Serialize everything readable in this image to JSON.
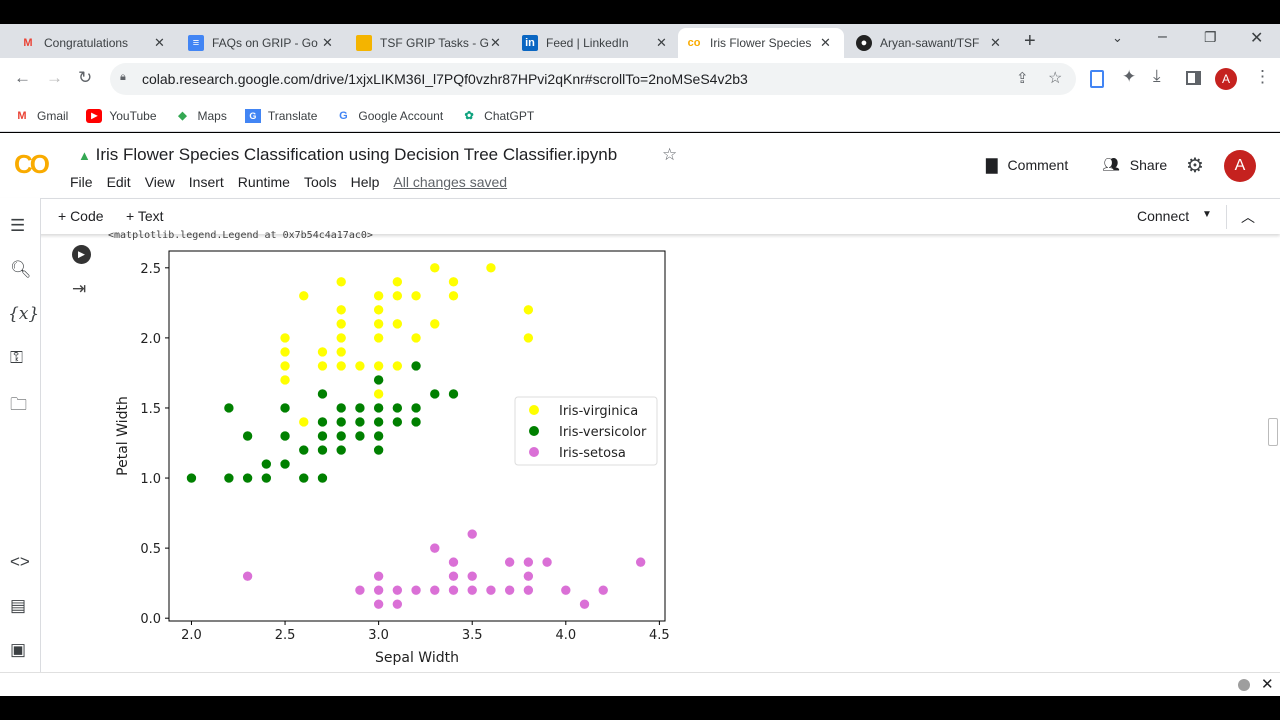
{
  "browser": {
    "tabs": [
      {
        "label": "Congratulations",
        "icon": "gmail-icon",
        "active": false
      },
      {
        "label": "FAQs on GRIP - Go",
        "icon": "google-docs-icon",
        "active": false
      },
      {
        "label": "TSF GRIP Tasks - G",
        "icon": "google-slides-icon",
        "active": false
      },
      {
        "label": "Feed | LinkedIn",
        "icon": "linkedin-icon",
        "active": false
      },
      {
        "label": "Iris Flower Species",
        "icon": "colab-icon",
        "active": true
      },
      {
        "label": "Aryan-sawant/TSF",
        "icon": "github-icon",
        "active": false
      }
    ],
    "url": "colab.research.google.com/drive/1xjxLIKM36I_l7PQf0vzhr87HPvi2qKnr#scrollTo=2noMSeS4v2b3",
    "profile_initial": "A",
    "bookmarks": [
      "Gmail",
      "YouTube",
      "Maps",
      "Translate",
      "Google Account",
      "ChatGPT"
    ]
  },
  "colab": {
    "logo": "CO",
    "title": "Iris Flower Species Classification using Decision Tree Classifier.ipynb",
    "menu": [
      "File",
      "Edit",
      "View",
      "Insert",
      "Runtime",
      "Tools",
      "Help"
    ],
    "save_status": "All changes saved",
    "comment": "Comment",
    "share": "Share",
    "avatar": "A",
    "add_code": "+ Code",
    "add_text": "+ Text",
    "connect": "Connect",
    "output_text": "<matplotlib.legend.Legend at 0x7b54c4a17ac0>"
  },
  "chart_data": {
    "type": "scatter",
    "xlabel": "Sepal Width",
    "ylabel": "Petal Width",
    "xlim": [
      1.88,
      4.53
    ],
    "ylim": [
      -0.02,
      2.62
    ],
    "xticks": [
      "2.0",
      "2.5",
      "3.0",
      "3.5",
      "4.0",
      "4.5"
    ],
    "yticks": [
      "0.0",
      "0.5",
      "1.0",
      "1.5",
      "2.0",
      "2.5"
    ],
    "legend": "center-right",
    "grid": false,
    "series": [
      {
        "name": "Iris-virginica",
        "color": "#ffff00",
        "points": [
          [
            3.3,
            2.5
          ],
          [
            3.6,
            2.5
          ],
          [
            2.8,
            2.4
          ],
          [
            3.1,
            2.4
          ],
          [
            3.4,
            2.4
          ],
          [
            2.6,
            2.3
          ],
          [
            3.0,
            2.3
          ],
          [
            3.1,
            2.3
          ],
          [
            3.2,
            2.3
          ],
          [
            3.4,
            2.3
          ],
          [
            2.8,
            2.2
          ],
          [
            3.0,
            2.2
          ],
          [
            3.8,
            2.2
          ],
          [
            2.8,
            2.1
          ],
          [
            3.0,
            2.1
          ],
          [
            3.1,
            2.1
          ],
          [
            3.3,
            2.1
          ],
          [
            2.5,
            2.0
          ],
          [
            2.8,
            2.0
          ],
          [
            3.0,
            2.0
          ],
          [
            3.2,
            2.0
          ],
          [
            3.8,
            2.0
          ],
          [
            2.5,
            1.9
          ],
          [
            2.7,
            1.9
          ],
          [
            2.8,
            1.9
          ],
          [
            2.5,
            1.8
          ],
          [
            2.7,
            1.8
          ],
          [
            2.8,
            1.8
          ],
          [
            2.9,
            1.8
          ],
          [
            3.0,
            1.8
          ],
          [
            3.1,
            1.8
          ],
          [
            2.5,
            1.7
          ],
          [
            3.0,
            1.6
          ],
          [
            2.6,
            1.4
          ]
        ]
      },
      {
        "name": "Iris-versicolor",
        "color": "#008000",
        "points": [
          [
            3.2,
            1.8
          ],
          [
            3.0,
            1.7
          ],
          [
            2.7,
            1.6
          ],
          [
            3.3,
            1.6
          ],
          [
            3.4,
            1.6
          ],
          [
            2.2,
            1.5
          ],
          [
            2.5,
            1.5
          ],
          [
            2.8,
            1.5
          ],
          [
            2.9,
            1.5
          ],
          [
            3.0,
            1.5
          ],
          [
            3.1,
            1.5
          ],
          [
            3.2,
            1.5
          ],
          [
            2.7,
            1.4
          ],
          [
            2.8,
            1.4
          ],
          [
            2.9,
            1.4
          ],
          [
            3.0,
            1.4
          ],
          [
            3.1,
            1.4
          ],
          [
            3.2,
            1.4
          ],
          [
            2.3,
            1.3
          ],
          [
            2.5,
            1.3
          ],
          [
            2.7,
            1.3
          ],
          [
            2.8,
            1.3
          ],
          [
            2.9,
            1.3
          ],
          [
            3.0,
            1.3
          ],
          [
            2.6,
            1.2
          ],
          [
            2.7,
            1.2
          ],
          [
            2.8,
            1.2
          ],
          [
            3.0,
            1.2
          ],
          [
            2.4,
            1.1
          ],
          [
            2.5,
            1.1
          ],
          [
            2.0,
            1.0
          ],
          [
            2.2,
            1.0
          ],
          [
            2.3,
            1.0
          ],
          [
            2.4,
            1.0
          ],
          [
            2.6,
            1.0
          ],
          [
            2.7,
            1.0
          ]
        ]
      },
      {
        "name": "Iris-setosa",
        "color": "#da70d6",
        "points": [
          [
            3.5,
            0.6
          ],
          [
            3.3,
            0.5
          ],
          [
            3.4,
            0.4
          ],
          [
            3.7,
            0.4
          ],
          [
            3.8,
            0.4
          ],
          [
            3.9,
            0.4
          ],
          [
            4.4,
            0.4
          ],
          [
            2.3,
            0.3
          ],
          [
            3.0,
            0.3
          ],
          [
            3.4,
            0.3
          ],
          [
            3.5,
            0.3
          ],
          [
            3.8,
            0.3
          ],
          [
            2.9,
            0.2
          ],
          [
            3.0,
            0.2
          ],
          [
            3.1,
            0.2
          ],
          [
            3.2,
            0.2
          ],
          [
            3.3,
            0.2
          ],
          [
            3.4,
            0.2
          ],
          [
            3.5,
            0.2
          ],
          [
            3.6,
            0.2
          ],
          [
            3.7,
            0.2
          ],
          [
            3.8,
            0.2
          ],
          [
            4.0,
            0.2
          ],
          [
            4.2,
            0.2
          ],
          [
            3.0,
            0.1
          ],
          [
            3.1,
            0.1
          ],
          [
            4.1,
            0.1
          ]
        ]
      }
    ]
  }
}
